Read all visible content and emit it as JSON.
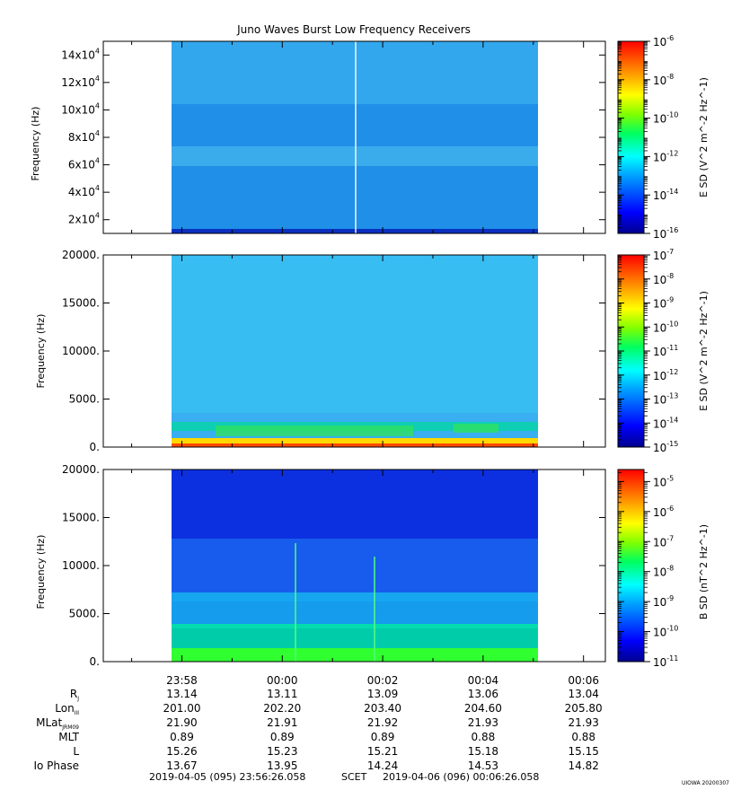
{
  "chart_data": [
    {
      "type": "heatmap",
      "title": "Juno Waves Burst Low Frequency Receivers",
      "ylabel": "Frequency (Hz)",
      "yticks": [
        {
          "value": 20000,
          "mant": "2x10",
          "exp": "4"
        },
        {
          "value": 40000,
          "mant": "4x10",
          "exp": "4"
        },
        {
          "value": 60000,
          "mant": "6x10",
          "exp": "4"
        },
        {
          "value": 80000,
          "mant": "8x10",
          "exp": "4"
        },
        {
          "value": 100000,
          "mant": "10x10",
          "exp": "4"
        },
        {
          "value": 120000,
          "mant": "12x10",
          "exp": "4"
        },
        {
          "value": 140000,
          "mant": "14x10",
          "exp": "4"
        }
      ],
      "ylim": [
        10000,
        150000
      ],
      "colorbar": {
        "label": "E SD (V^2 m^-2 Hz^-1)",
        "log": true,
        "ticks": [
          {
            "value": -6,
            "text": "10",
            "exp": "-6"
          },
          {
            "value": -8,
            "text": "10",
            "exp": "-8"
          },
          {
            "value": -10,
            "text": "10",
            "exp": "-10"
          },
          {
            "value": -12,
            "text": "10",
            "exp": "-12"
          },
          {
            "value": -14,
            "text": "10",
            "exp": "-14"
          },
          {
            "value": -16,
            "text": "10",
            "exp": "-16"
          }
        ],
        "range": [
          -16,
          -6
        ]
      }
    },
    {
      "type": "heatmap",
      "ylabel": "Frequency (Hz)",
      "yticks": [
        {
          "value": 0,
          "text": "0."
        },
        {
          "value": 5000,
          "text": "5000."
        },
        {
          "value": 10000,
          "text": "10000."
        },
        {
          "value": 15000,
          "text": "15000."
        },
        {
          "value": 20000,
          "text": "20000."
        }
      ],
      "ylim": [
        0,
        20000
      ],
      "colorbar": {
        "label": "E SD (V^2 m^-2 Hz^-1)",
        "log": true,
        "ticks": [
          {
            "value": -7,
            "text": "10",
            "exp": "-7"
          },
          {
            "value": -8,
            "text": "10",
            "exp": "-8"
          },
          {
            "value": -9,
            "text": "10",
            "exp": "-9"
          },
          {
            "value": -10,
            "text": "10",
            "exp": "-10"
          },
          {
            "value": -11,
            "text": "10",
            "exp": "-11"
          },
          {
            "value": -12,
            "text": "10",
            "exp": "-12"
          },
          {
            "value": -13,
            "text": "10",
            "exp": "-13"
          },
          {
            "value": -14,
            "text": "10",
            "exp": "-14"
          },
          {
            "value": -15,
            "text": "10",
            "exp": "-15"
          }
        ],
        "range": [
          -15,
          -7
        ]
      }
    },
    {
      "type": "heatmap",
      "ylabel": "Frequency (Hz)",
      "yticks": [
        {
          "value": 0,
          "text": "0."
        },
        {
          "value": 5000,
          "text": "5000."
        },
        {
          "value": 10000,
          "text": "10000."
        },
        {
          "value": 15000,
          "text": "15000."
        },
        {
          "value": 20000,
          "text": "20000."
        }
      ],
      "ylim": [
        0,
        20000
      ],
      "colorbar": {
        "label": "B SD (nT^2 Hz^-1)",
        "log": true,
        "ticks": [
          {
            "value": -5,
            "text": "10",
            "exp": "-5"
          },
          {
            "value": -6,
            "text": "10",
            "exp": "-6"
          },
          {
            "value": -7,
            "text": "10",
            "exp": "-7"
          },
          {
            "value": -8,
            "text": "10",
            "exp": "-8"
          },
          {
            "value": -9,
            "text": "10",
            "exp": "-9"
          },
          {
            "value": -10,
            "text": "10",
            "exp": "-10"
          },
          {
            "value": -11,
            "text": "10",
            "exp": "-11"
          }
        ],
        "range": [
          -11,
          -4.6
        ]
      }
    }
  ],
  "time_axis": {
    "ticks": [
      "23:58",
      "00:00",
      "00:02",
      "00:04",
      "00:06"
    ],
    "tick_minutes": [
      -2,
      0,
      2,
      4,
      6
    ],
    "range_minutes": [
      -3.565,
      6.435
    ],
    "data_range_minutes": [
      -2.2,
      5.1
    ]
  },
  "ephemeris": [
    {
      "label": "R",
      "sub": "J",
      "values": [
        "13.14",
        "13.11",
        "13.09",
        "13.06",
        "13.04"
      ]
    },
    {
      "label": "Lon",
      "sub": "III",
      "values": [
        "201.00",
        "202.20",
        "203.40",
        "204.60",
        "205.80"
      ]
    },
    {
      "label": "MLat",
      "sub": "JRM09",
      "values": [
        "21.90",
        "21.91",
        "21.92",
        "21.93",
        "21.93"
      ]
    },
    {
      "label": "MLT",
      "sub": "",
      "values": [
        "0.89",
        "0.89",
        "0.89",
        "0.88",
        "0.88"
      ]
    },
    {
      "label": "L",
      "sub": "",
      "values": [
        "15.26",
        "15.23",
        "15.21",
        "15.18",
        "15.15"
      ]
    },
    {
      "label": "Io Phase",
      "sub": "",
      "values": [
        "13.67",
        "13.95",
        "14.24",
        "14.53",
        "14.82"
      ]
    }
  ],
  "footer": {
    "start": "2019-04-05 (095) 23:56:26.058",
    "frame": "SCET",
    "end": "2019-04-06 (096) 00:06:26.058",
    "stamp": "UIOWA 20200307"
  },
  "colors": {
    "frame": "#000000",
    "background": "#ffffff"
  }
}
